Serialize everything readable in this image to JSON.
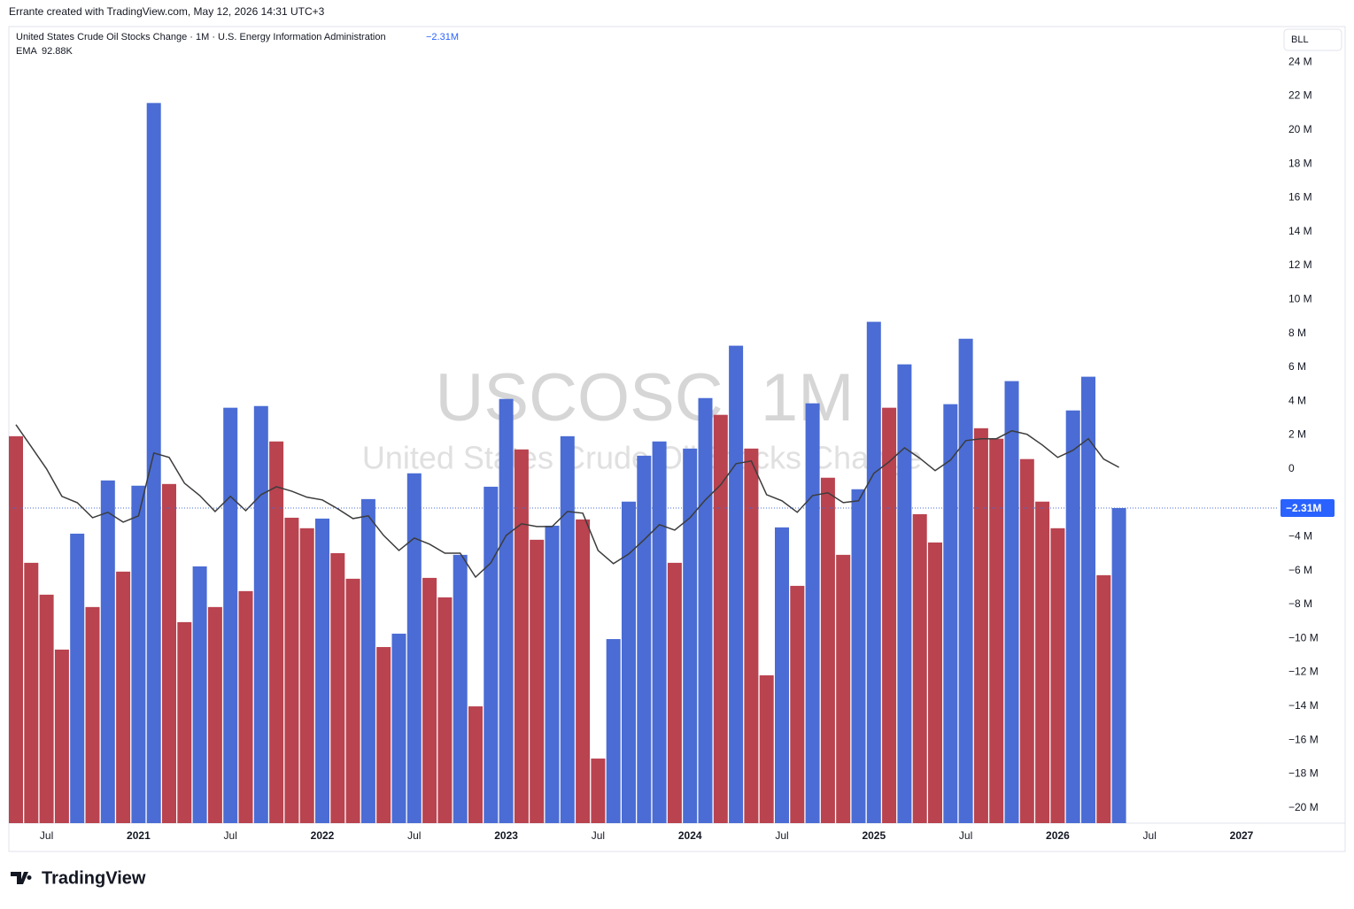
{
  "header": {
    "attribution": "Errante created with TradingView.com, May 12, 2026 14:31 UTC+3",
    "unit_button": "BLL",
    "logo": "TradingView"
  },
  "chart_data": {
    "type": "bar",
    "title": "United States Crude Oil Stocks Change · 1M · U.S. Energy Information Administration",
    "last_value_label": "−2.31M",
    "watermark_symbol": "USCOSC, 1M",
    "watermark_name": "United States Crude Oil Stocks Change",
    "up_color": "#4a6cd4",
    "down_color": "#b9434f",
    "categories": [
      null,
      null,
      "Jul",
      null,
      null,
      null,
      null,
      null,
      "2021",
      null,
      null,
      null,
      null,
      null,
      "Jul",
      null,
      null,
      null,
      null,
      null,
      "2022",
      null,
      null,
      null,
      null,
      null,
      "Jul",
      null,
      null,
      null,
      null,
      null,
      "2023",
      null,
      null,
      null,
      null,
      null,
      "Jul",
      null,
      null,
      null,
      null,
      null,
      "2024",
      null,
      null,
      null,
      null,
      null,
      "Jul",
      null,
      null,
      null,
      null,
      null,
      "2025",
      null,
      null,
      null,
      null,
      null,
      "Jul",
      null,
      null,
      null,
      null,
      null,
      "2026",
      null,
      null,
      null,
      null
    ],
    "future_categories": [
      null,
      "Jul",
      null,
      null,
      null,
      null,
      null,
      "2027"
    ],
    "values": [
      1.93,
      -5.54,
      -7.42,
      -10.66,
      -3.82,
      -8.15,
      -0.68,
      -6.06,
      -0.99,
      21.59,
      -0.89,
      -9.04,
      -5.75,
      -8.15,
      3.61,
      -7.21,
      3.71,
      1.62,
      -2.88,
      -3.5,
      -2.93,
      -4.97,
      -6.48,
      -1.78,
      -10.51,
      -9.72,
      -0.26,
      -6.43,
      -7.58,
      -5.07,
      -14.01,
      -1.05,
      4.13,
      1.15,
      -4.18,
      -3.35,
      1.93,
      -2.98,
      -17.09,
      -10.04,
      -1.93,
      0.78,
      1.62,
      -5.54,
      1.2,
      4.18,
      3.19,
      7.27,
      1.2,
      -12.18,
      -3.45,
      -6.9,
      3.87,
      -0.52,
      -5.07,
      -1.2,
      8.68,
      3.61,
      6.17,
      -2.67,
      -4.34,
      3.82,
      7.68,
      2.4,
      1.78,
      5.18,
      0.58,
      -1.93,
      -3.5,
      3.45,
      5.44,
      -6.27,
      -2.31
    ],
    "ema": {
      "name": "EMA",
      "value_label": "92.88K",
      "color": "#3c3c3c",
      "values": [
        2.61,
        1.31,
        0,
        -1.62,
        -1.99,
        -2.88,
        -2.56,
        -3.14,
        -2.77,
        0.94,
        0.68,
        -0.84,
        -1.57,
        -2.51,
        -1.62,
        -2.46,
        -1.52,
        -1.05,
        -1.31,
        -1.67,
        -1.83,
        -2.35,
        -2.93,
        -2.77,
        -3.92,
        -4.81,
        -4.08,
        -4.44,
        -4.97,
        -4.97,
        -6.38,
        -5.54,
        -3.92,
        -3.24,
        -3.4,
        -3.4,
        -2.51,
        -2.61,
        -4.81,
        -5.59,
        -5.02,
        -4.18,
        -3.29,
        -3.61,
        -2.88,
        -1.83,
        -0.94,
        0.31,
        0.47,
        -1.52,
        -1.88,
        -2.56,
        -1.57,
        -1.41,
        -1.99,
        -1.88,
        -0.26,
        0.42,
        1.25,
        0.63,
        -0.1,
        0.52,
        1.67,
        1.78,
        1.78,
        2.25,
        2.04,
        1.41,
        0.68,
        1.1,
        1.78,
        0.58,
        0.09288
      ]
    },
    "ylim": [
      -20.9,
      26.1
    ],
    "yticks": [
      {
        "value": 24,
        "label": "24 M"
      },
      {
        "value": 22,
        "label": "22 M"
      },
      {
        "value": 20,
        "label": "20 M"
      },
      {
        "value": 18,
        "label": "18 M"
      },
      {
        "value": 16,
        "label": "16 M"
      },
      {
        "value": 14,
        "label": "14 M"
      },
      {
        "value": 12,
        "label": "12 M"
      },
      {
        "value": 10,
        "label": "10 M"
      },
      {
        "value": 8,
        "label": "8 M"
      },
      {
        "value": 6,
        "label": "6 M"
      },
      {
        "value": 4,
        "label": "4 M"
      },
      {
        "value": 2,
        "label": "2 M"
      },
      0,
      {
        "value": -4,
        "label": "−4 M"
      },
      {
        "value": -6,
        "label": "−6 M"
      },
      {
        "value": -8,
        "label": "−8 M"
      },
      {
        "value": -10,
        "label": "−10 M"
      },
      {
        "value": -12,
        "label": "−12 M"
      },
      {
        "value": -14,
        "label": "−14 M"
      },
      {
        "value": -16,
        "label": "−16 M"
      },
      {
        "value": -18,
        "label": "−18 M"
      },
      {
        "value": -20,
        "label": "−20 M"
      }
    ]
  }
}
